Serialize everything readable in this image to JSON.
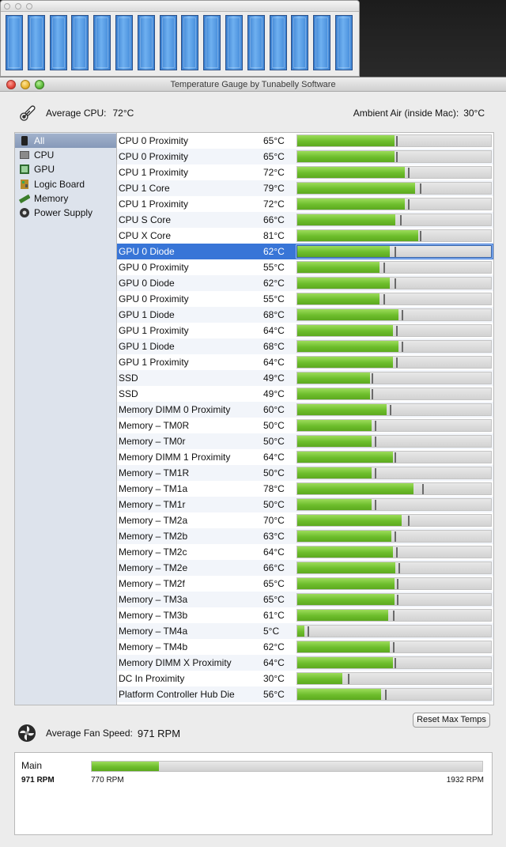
{
  "colors": {
    "bar_fill": "#6dbd2c",
    "selection": "#3875d7",
    "mini_bar": "#4a90e2"
  },
  "mini_bar_count": 16,
  "window": {
    "title": "Temperature Gauge by Tunabelly Software"
  },
  "header": {
    "avg_cpu_label": "Average CPU:",
    "avg_cpu_value": "72°C",
    "ambient_label": "Ambient Air (inside Mac):",
    "ambient_value": "30°C"
  },
  "sidebar": {
    "items": [
      {
        "label": "All",
        "icon": "all-icon",
        "selected": true
      },
      {
        "label": "CPU",
        "icon": "cpu-icon",
        "selected": false
      },
      {
        "label": "GPU",
        "icon": "gpu-icon",
        "selected": false
      },
      {
        "label": "Logic Board",
        "icon": "logic-board-icon",
        "selected": false
      },
      {
        "label": "Memory",
        "icon": "memory-icon",
        "selected": false
      },
      {
        "label": "Power Supply",
        "icon": "power-supply-icon",
        "selected": false
      }
    ]
  },
  "scale_max_c": 130,
  "sensors": [
    {
      "name": "CPU 0 Proximity",
      "temp": "65°C",
      "value": 65,
      "max": 65
    },
    {
      "name": "CPU 0 Proximity",
      "temp": "65°C",
      "value": 65,
      "max": 65
    },
    {
      "name": "CPU 1 Proximity",
      "temp": "72°C",
      "value": 72,
      "max": 73
    },
    {
      "name": "CPU 1 Core",
      "temp": "79°C",
      "value": 79,
      "max": 81
    },
    {
      "name": "CPU 1 Proximity",
      "temp": "72°C",
      "value": 72,
      "max": 73
    },
    {
      "name": "CPU S Core",
      "temp": "66°C",
      "value": 66,
      "max": 68
    },
    {
      "name": "CPU X Core",
      "temp": "81°C",
      "value": 81,
      "max": 81
    },
    {
      "name": "GPU 0 Diode",
      "temp": "62°C",
      "value": 62,
      "max": 64,
      "selected": true
    },
    {
      "name": "GPU 0 Proximity",
      "temp": "55°C",
      "value": 55,
      "max": 57
    },
    {
      "name": "GPU 0 Diode",
      "temp": "62°C",
      "value": 62,
      "max": 64
    },
    {
      "name": "GPU 0 Proximity",
      "temp": "55°C",
      "value": 55,
      "max": 57
    },
    {
      "name": "GPU 1 Diode",
      "temp": "68°C",
      "value": 68,
      "max": 69
    },
    {
      "name": "GPU 1 Proximity",
      "temp": "64°C",
      "value": 64,
      "max": 65
    },
    {
      "name": "GPU 1 Diode",
      "temp": "68°C",
      "value": 68,
      "max": 69
    },
    {
      "name": "GPU 1 Proximity",
      "temp": "64°C",
      "value": 64,
      "max": 65
    },
    {
      "name": "SSD",
      "temp": "49°C",
      "value": 49,
      "max": 49
    },
    {
      "name": "SSD",
      "temp": "49°C",
      "value": 49,
      "max": 49
    },
    {
      "name": "Memory DIMM 0 Proximity",
      "temp": "60°C",
      "value": 60,
      "max": 61
    },
    {
      "name": "Memory – TM0R",
      "temp": "50°C",
      "value": 50,
      "max": 51
    },
    {
      "name": "Memory – TM0r",
      "temp": "50°C",
      "value": 50,
      "max": 51
    },
    {
      "name": "Memory DIMM 1 Proximity",
      "temp": "64°C",
      "value": 64,
      "max": 64
    },
    {
      "name": "Memory – TM1R",
      "temp": "50°C",
      "value": 50,
      "max": 51
    },
    {
      "name": "Memory – TM1a",
      "temp": "78°C",
      "value": 78,
      "max": 83
    },
    {
      "name": "Memory – TM1r",
      "temp": "50°C",
      "value": 50,
      "max": 51
    },
    {
      "name": "Memory – TM2a",
      "temp": "70°C",
      "value": 70,
      "max": 73
    },
    {
      "name": "Memory – TM2b",
      "temp": "63°C",
      "value": 63,
      "max": 64
    },
    {
      "name": "Memory – TM2c",
      "temp": "64°C",
      "value": 64,
      "max": 65
    },
    {
      "name": "Memory – TM2e",
      "temp": "66°C",
      "value": 66,
      "max": 67
    },
    {
      "name": "Memory – TM2f",
      "temp": "65°C",
      "value": 65,
      "max": 66
    },
    {
      "name": "Memory – TM3a",
      "temp": "65°C",
      "value": 65,
      "max": 66
    },
    {
      "name": "Memory – TM3b",
      "temp": "61°C",
      "value": 61,
      "max": 63
    },
    {
      "name": "Memory – TM4a",
      "temp": "5°C",
      "value": 5,
      "max": 6
    },
    {
      "name": "Memory – TM4b",
      "temp": "62°C",
      "value": 62,
      "max": 63
    },
    {
      "name": "Memory DIMM X Proximity",
      "temp": "64°C",
      "value": 64,
      "max": 64
    },
    {
      "name": "DC In Proximity",
      "temp": "30°C",
      "value": 30,
      "max": 33
    },
    {
      "name": "Platform Controller Hub Die",
      "temp": "56°C",
      "value": 56,
      "max": 58
    }
  ],
  "fan": {
    "avg_label": "Average Fan Speed:",
    "avg_value": "971 RPM",
    "reset_label": "Reset Max Temps",
    "name": "Main",
    "current": "971 RPM",
    "min": "770 RPM",
    "max": "1932 RPM",
    "level": 0.173
  }
}
